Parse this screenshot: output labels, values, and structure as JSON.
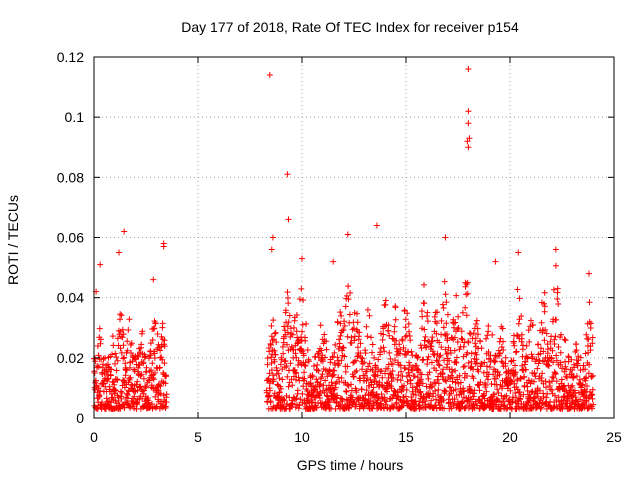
{
  "chart_data": {
    "type": "scatter",
    "title": "Day 177 of 2018, Rate Of TEC Index for receiver p154",
    "xlabel": "GPS time / hours",
    "ylabel": "ROTI / TECUs",
    "xlim": [
      0,
      25
    ],
    "ylim": [
      0,
      0.12
    ],
    "xticks": [
      0,
      5,
      10,
      15,
      20,
      25
    ],
    "yticks": [
      0,
      0.02,
      0.04,
      0.06,
      0.08,
      0.1,
      0.12
    ],
    "xtick_labels": [
      "0",
      "5",
      "10",
      "15",
      "20",
      "25"
    ],
    "ytick_labels": [
      "0",
      "0.02",
      "0.04",
      "0.06",
      "0.08",
      "0.1",
      "0.12"
    ],
    "grid": true,
    "marker": "+",
    "color": "#ff0000",
    "series": [
      {
        "name": "ROTI",
        "description_ranges": [
          [
            0.0,
            3.5
          ],
          [
            8.3,
            24.0
          ]
        ],
        "outliers": [
          {
            "x": 8.45,
            "y": 0.114
          },
          {
            "x": 9.3,
            "y": 0.081
          },
          {
            "x": 9.35,
            "y": 0.066
          },
          {
            "x": 13.6,
            "y": 0.064
          },
          {
            "x": 1.45,
            "y": 0.062
          },
          {
            "x": 18.0,
            "y": 0.116
          },
          {
            "x": 18.0,
            "y": 0.102
          },
          {
            "x": 18.0,
            "y": 0.098
          },
          {
            "x": 18.05,
            "y": 0.093
          },
          {
            "x": 17.95,
            "y": 0.092
          },
          {
            "x": 18.0,
            "y": 0.09
          },
          {
            "x": 16.9,
            "y": 0.06
          },
          {
            "x": 12.2,
            "y": 0.061
          },
          {
            "x": 3.35,
            "y": 0.058
          },
          {
            "x": 3.35,
            "y": 0.057
          },
          {
            "x": 19.3,
            "y": 0.052
          },
          {
            "x": 0.3,
            "y": 0.051
          },
          {
            "x": 11.5,
            "y": 0.052
          },
          {
            "x": 20.4,
            "y": 0.055
          },
          {
            "x": 22.2,
            "y": 0.056
          },
          {
            "x": 8.6,
            "y": 0.06
          },
          {
            "x": 8.55,
            "y": 0.056
          },
          {
            "x": 1.2,
            "y": 0.055
          },
          {
            "x": 10.0,
            "y": 0.053
          },
          {
            "x": 23.8,
            "y": 0.048
          },
          {
            "x": 2.85,
            "y": 0.046
          },
          {
            "x": 0.1,
            "y": 0.042
          }
        ]
      }
    ]
  },
  "colors": {
    "marker": "#ff0000",
    "grid": "#a0a0a0",
    "axis": "#000000"
  }
}
